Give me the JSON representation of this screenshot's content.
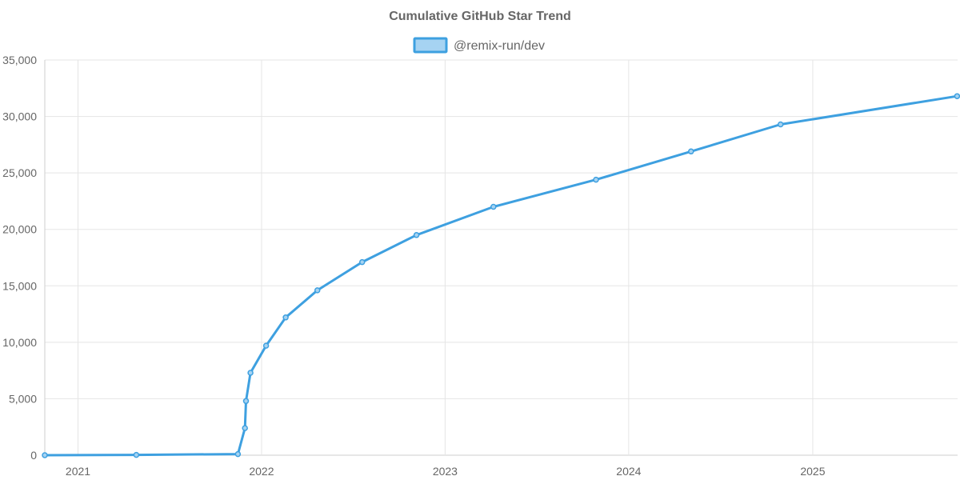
{
  "chart_data": {
    "type": "line",
    "title": "Cumulative GitHub Star Trend",
    "xlabel": "",
    "ylabel": "",
    "legend_position": "top-center",
    "grid": true,
    "x_tick_labels": [
      "2021",
      "2022",
      "2023",
      "2024",
      "2025"
    ],
    "y_tick_labels": [
      "0",
      "5,000",
      "10,000",
      "15,000",
      "20,000",
      "25,000",
      "30,000",
      "35,000"
    ],
    "ylim": [
      0,
      35000
    ],
    "xlim": [
      "2020-10-27",
      "2025-10-16"
    ],
    "series": [
      {
        "name": "@remix-run/dev",
        "color": "#3ea0e0",
        "fill_color": "#a6d3f2",
        "points": [
          {
            "x": "2020-10-27",
            "y": 0
          },
          {
            "x": "2021-04-27",
            "y": 30
          },
          {
            "x": "2021-11-15",
            "y": 100
          },
          {
            "x": "2021-11-29",
            "y": 2400
          },
          {
            "x": "2021-12-01",
            "y": 4800
          },
          {
            "x": "2021-12-10",
            "y": 7300
          },
          {
            "x": "2022-01-10",
            "y": 9700
          },
          {
            "x": "2022-02-18",
            "y": 12200
          },
          {
            "x": "2022-04-22",
            "y": 14600
          },
          {
            "x": "2022-07-20",
            "y": 17100
          },
          {
            "x": "2022-11-05",
            "y": 19500
          },
          {
            "x": "2023-04-07",
            "y": 22000
          },
          {
            "x": "2023-10-28",
            "y": 24400
          },
          {
            "x": "2024-05-04",
            "y": 26900
          },
          {
            "x": "2024-10-29",
            "y": 29300
          },
          {
            "x": "2025-10-15",
            "y": 31800
          }
        ]
      }
    ]
  }
}
